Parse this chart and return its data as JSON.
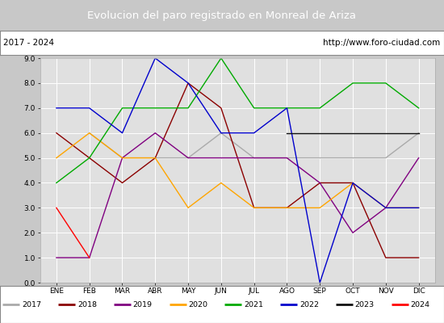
{
  "title": "Evolucion del paro registrado en Monreal de Ariza",
  "subtitle_left": "2017 - 2024",
  "subtitle_right": "http://www.foro-ciudad.com",
  "months": [
    "ENE",
    "FEB",
    "MAR",
    "ABR",
    "MAY",
    "JUN",
    "JUL",
    "AGO",
    "SEP",
    "OCT",
    "NOV",
    "DIC"
  ],
  "ylim": [
    0.0,
    9.0
  ],
  "yticks": [
    0.0,
    1.0,
    2.0,
    3.0,
    4.0,
    5.0,
    6.0,
    7.0,
    8.0,
    9.0
  ],
  "series": {
    "2017": {
      "color": "#aaaaaa",
      "data": [
        null,
        6.0,
        5.0,
        5.0,
        5.0,
        6.0,
        5.0,
        5.0,
        5.0,
        5.0,
        5.0,
        6.0
      ]
    },
    "2018": {
      "color": "#8b0000",
      "data": [
        6.0,
        5.0,
        4.0,
        5.0,
        8.0,
        7.0,
        3.0,
        3.0,
        4.0,
        4.0,
        1.0,
        1.0
      ]
    },
    "2019": {
      "color": "#800080",
      "data": [
        1.0,
        1.0,
        5.0,
        6.0,
        5.0,
        5.0,
        5.0,
        5.0,
        4.0,
        2.0,
        3.0,
        5.0
      ]
    },
    "2020": {
      "color": "#ffa500",
      "data": [
        5.0,
        6.0,
        5.0,
        5.0,
        3.0,
        4.0,
        3.0,
        3.0,
        3.0,
        4.0,
        3.0,
        3.0
      ]
    },
    "2021": {
      "color": "#00aa00",
      "data": [
        4.0,
        5.0,
        7.0,
        7.0,
        7.0,
        9.0,
        7.0,
        7.0,
        7.0,
        8.0,
        8.0,
        7.0
      ]
    },
    "2022": {
      "color": "#0000cc",
      "data": [
        7.0,
        7.0,
        6.0,
        9.0,
        8.0,
        6.0,
        6.0,
        7.0,
        0.0,
        4.0,
        3.0,
        3.0
      ]
    },
    "2023": {
      "color": "#111111",
      "data": [
        null,
        null,
        null,
        null,
        null,
        null,
        null,
        6.0,
        6.0,
        6.0,
        6.0,
        6.0
      ]
    },
    "2024": {
      "color": "#ff0000",
      "data": [
        3.0,
        1.0,
        null,
        null,
        null,
        null,
        null,
        null,
        null,
        null,
        null,
        null
      ]
    }
  },
  "title_bg_color": "#4472c4",
  "title_fg_color": "#ffffff",
  "header_bg_color": "#ffffff",
  "plot_bg_color": "#e0e0e0",
  "fig_bg_color": "#c8c8c8",
  "legend_bg_color": "#ffffff"
}
